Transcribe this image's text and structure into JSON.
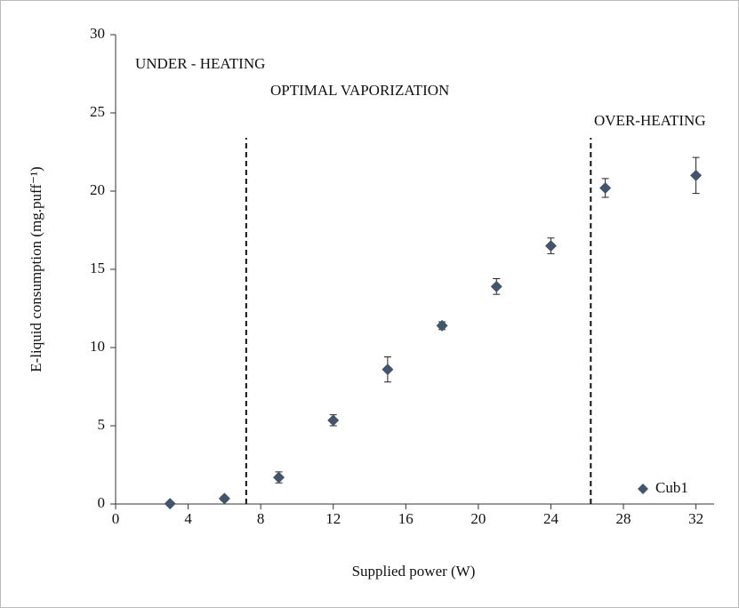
{
  "chart_data": {
    "type": "scatter",
    "xlabel": "Supplied power (W)",
    "ylabel": "E-liquid consumption (mg.puff⁻¹)",
    "xlim": [
      0,
      33
    ],
    "ylim": [
      0,
      30
    ],
    "xticks": [
      0,
      4,
      8,
      12,
      16,
      20,
      24,
      28,
      32
    ],
    "yticks": [
      0,
      5,
      10,
      15,
      20,
      25,
      30
    ],
    "series": [
      {
        "name": "Cub1",
        "color": "#44546a",
        "x": [
          3,
          6,
          9,
          12,
          15,
          18,
          21,
          24,
          27,
          32
        ],
        "y": [
          0.02,
          0.35,
          1.7,
          5.35,
          8.6,
          11.4,
          13.9,
          16.5,
          20.2,
          21.0
        ],
        "err": [
          0.05,
          0.15,
          0.35,
          0.35,
          0.8,
          0.25,
          0.5,
          0.5,
          0.6,
          1.15
        ]
      }
    ],
    "vlines": [
      {
        "x": 7.2,
        "y": [
          0,
          23.4
        ]
      },
      {
        "x": 26.2,
        "y": [
          0,
          23.4
        ]
      }
    ],
    "annotations": [
      "UNDER - HEATING",
      "OPTIMAL VAPORIZATION",
      "OVER-HEATING"
    ],
    "legend": "lower right"
  }
}
